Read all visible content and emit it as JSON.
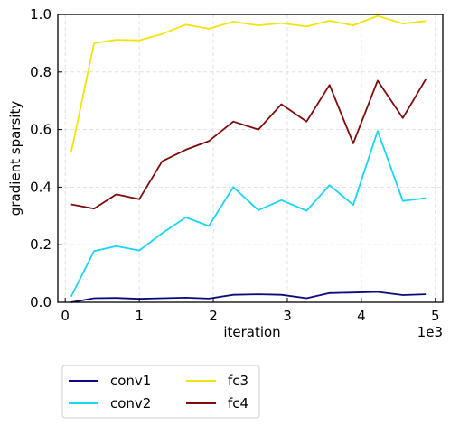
{
  "chart_data": {
    "type": "line",
    "xlabel": "iteration",
    "ylabel": "gradient sparsity",
    "x_offset_label": "1e3",
    "xlim": [
      -0.1,
      5.1
    ],
    "ylim": [
      0.0,
      1.0
    ],
    "xticks": [
      0,
      1,
      2,
      3,
      4,
      5
    ],
    "xtick_labels": [
      "0",
      "1",
      "2",
      "3",
      "4",
      "5"
    ],
    "yticks": [
      0.0,
      0.2,
      0.4,
      0.6,
      0.8,
      1.0
    ],
    "ytick_labels": [
      "0.0",
      "0.2",
      "0.4",
      "0.6",
      "0.8",
      "1.0"
    ],
    "grid": true,
    "legend_position": "below plot, two columns",
    "x": [
      0.08,
      0.39,
      0.69,
      1.0,
      1.31,
      1.63,
      1.94,
      2.27,
      2.61,
      2.92,
      3.26,
      3.57,
      3.89,
      4.22,
      4.56,
      4.87
    ],
    "series": [
      {
        "name": "conv1",
        "color": "#0a0a7a",
        "values": [
          0.0,
          0.014,
          0.015,
          0.012,
          0.014,
          0.016,
          0.013,
          0.026,
          0.028,
          0.026,
          0.014,
          0.032,
          0.034,
          0.036,
          0.025,
          0.028
        ]
      },
      {
        "name": "conv2",
        "color": "#18d6f5",
        "values": [
          0.02,
          0.178,
          0.195,
          0.18,
          0.24,
          0.295,
          0.265,
          0.4,
          0.32,
          0.355,
          0.318,
          0.407,
          0.338,
          0.595,
          0.352,
          0.362
        ]
      },
      {
        "name": "fc3",
        "color": "#f2e408",
        "values": [
          0.52,
          0.9,
          0.912,
          0.91,
          0.932,
          0.965,
          0.95,
          0.975,
          0.962,
          0.97,
          0.958,
          0.978,
          0.962,
          0.995,
          0.968,
          0.977
        ]
      },
      {
        "name": "fc4",
        "color": "#7f0c0c",
        "values": [
          0.34,
          0.325,
          0.375,
          0.358,
          0.49,
          0.53,
          0.56,
          0.628,
          0.6,
          0.688,
          0.628,
          0.755,
          0.552,
          0.77,
          0.64,
          0.775
        ]
      }
    ]
  }
}
